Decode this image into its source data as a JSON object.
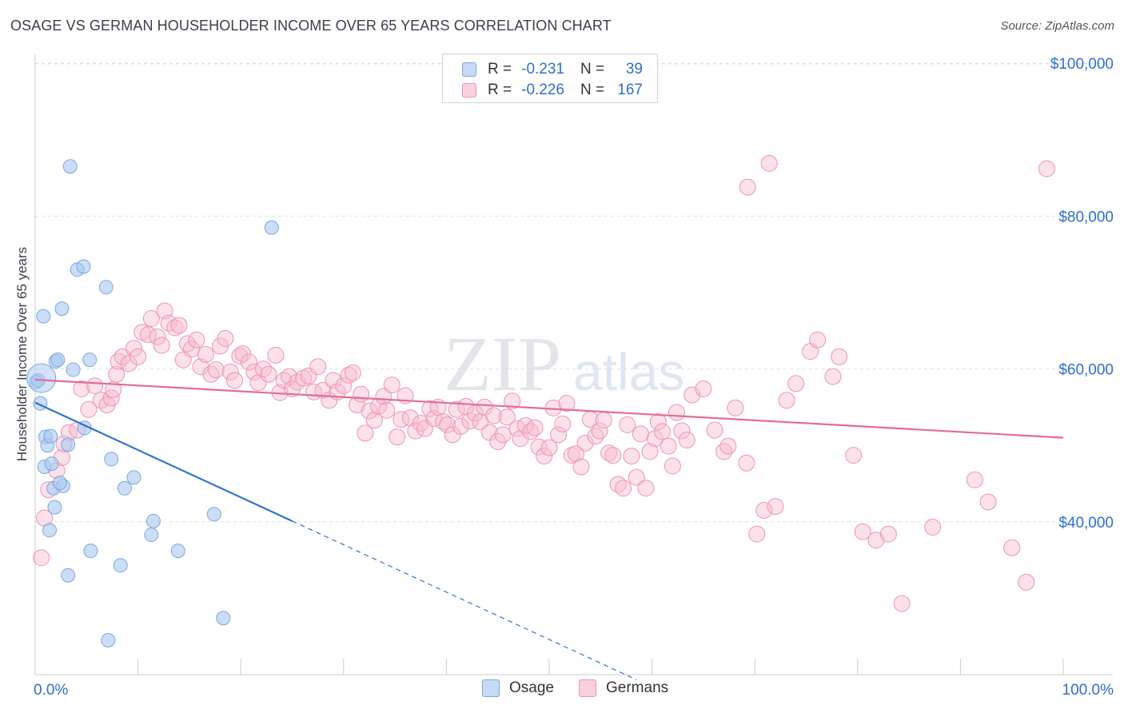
{
  "header": {
    "title": "OSAGE VS GERMAN HOUSEHOLDER INCOME OVER 65 YEARS CORRELATION CHART",
    "source": "Source: ZipAtlas.com"
  },
  "watermark": {
    "zip": "ZIP",
    "atlas": "atlas"
  },
  "legend_top": {
    "r_label": "R =",
    "n_label": "N =",
    "rows": [
      {
        "r_value": "-0.231",
        "n_value": "39"
      },
      {
        "r_value": "-0.226",
        "n_value": "167"
      }
    ]
  },
  "colors": {
    "osage_fill": "#a9c8f0",
    "osage_stroke": "#7aa8e0",
    "osage_line": "#2f73d0",
    "german_fill": "#f6bdd0",
    "german_stroke": "#ee93b2",
    "german_line": "#e46b98",
    "axis_text": "#2f6fd0",
    "grid": "#dde0e4"
  },
  "chart_data": {
    "type": "scatter",
    "title": "OSAGE VS GERMAN HOUSEHOLDER INCOME OVER 65 YEARS CORRELATION CHART",
    "xlabel": "",
    "ylabel": "Householder Income Over 65 years",
    "xlim": [
      0,
      100
    ],
    "ylim": [
      20000,
      100000
    ],
    "x_tick_labels": [
      "0.0%",
      "100.0%"
    ],
    "y_ticks": [
      40000,
      60000,
      80000,
      100000
    ],
    "y_tick_labels": [
      "$40,000",
      "$60,000",
      "$80,000",
      "$100,000"
    ],
    "grid": true,
    "legend_placement": "bottom-center",
    "series": [
      {
        "name": "Osage",
        "r": -0.231,
        "n": 39,
        "trend": {
          "x0": 0,
          "y0": 55600,
          "x1": 25,
          "y1": 40100,
          "dash_to_x": 58.5
        },
        "points": [
          [
            0.1,
            58300
          ],
          [
            0.3,
            58500
          ],
          [
            0.5,
            55500
          ],
          [
            0.8,
            66900
          ],
          [
            1.0,
            51100
          ],
          [
            1.2,
            50000
          ],
          [
            0.9,
            47200
          ],
          [
            1.5,
            51200
          ],
          [
            1.6,
            47600
          ],
          [
            1.8,
            44400
          ],
          [
            2.0,
            61000
          ],
          [
            2.2,
            61200
          ],
          [
            2.6,
            67900
          ],
          [
            1.9,
            41900
          ],
          [
            2.7,
            44700
          ],
          [
            3.2,
            50100
          ],
          [
            3.4,
            86500
          ],
          [
            3.7,
            59900
          ],
          [
            4.1,
            73000
          ],
          [
            4.7,
            73400
          ],
          [
            4.8,
            52300
          ],
          [
            5.3,
            61200
          ],
          [
            5.4,
            36200
          ],
          [
            6.9,
            70700
          ],
          [
            7.1,
            24500
          ],
          [
            7.4,
            48200
          ],
          [
            8.3,
            34300
          ],
          [
            8.7,
            44400
          ],
          [
            9.6,
            45800
          ],
          [
            11.3,
            38300
          ],
          [
            11.5,
            40100
          ],
          [
            13.9,
            36200
          ],
          [
            17.4,
            41000
          ],
          [
            18.3,
            27400
          ],
          [
            23.0,
            78500
          ],
          [
            3.2,
            33000
          ],
          [
            2.4,
            45100
          ],
          [
            1.4,
            38900
          ],
          [
            0.6,
            58800
          ]
        ]
      },
      {
        "name": "Germans",
        "r": -0.226,
        "n": 167,
        "trend": {
          "x0": 0,
          "y0": 58600,
          "x1": 100,
          "y1": 51000
        },
        "points": [
          [
            0.6,
            35300
          ],
          [
            0.9,
            40500
          ],
          [
            1.3,
            44200
          ],
          [
            2.1,
            46700
          ],
          [
            2.6,
            48400
          ],
          [
            2.8,
            50200
          ],
          [
            3.3,
            51700
          ],
          [
            4.1,
            52000
          ],
          [
            4.5,
            57400
          ],
          [
            5.2,
            54700
          ],
          [
            5.8,
            57800
          ],
          [
            6.4,
            55900
          ],
          [
            7.0,
            55300
          ],
          [
            7.4,
            56200
          ],
          [
            7.6,
            57300
          ],
          [
            7.9,
            59300
          ],
          [
            8.1,
            61000
          ],
          [
            8.5,
            61600
          ],
          [
            9.1,
            60700
          ],
          [
            9.6,
            62700
          ],
          [
            10.0,
            61600
          ],
          [
            10.4,
            64800
          ],
          [
            11.0,
            64500
          ],
          [
            11.3,
            66600
          ],
          [
            11.9,
            64200
          ],
          [
            12.3,
            63100
          ],
          [
            12.6,
            67600
          ],
          [
            13.0,
            66000
          ],
          [
            13.6,
            65400
          ],
          [
            14.0,
            65700
          ],
          [
            14.4,
            61200
          ],
          [
            14.8,
            63300
          ],
          [
            15.2,
            62600
          ],
          [
            15.7,
            63800
          ],
          [
            16.1,
            60300
          ],
          [
            16.6,
            61900
          ],
          [
            17.1,
            59300
          ],
          [
            17.6,
            59900
          ],
          [
            18.0,
            63000
          ],
          [
            18.5,
            64000
          ],
          [
            19.0,
            59600
          ],
          [
            19.4,
            58500
          ],
          [
            19.9,
            61700
          ],
          [
            20.2,
            62000
          ],
          [
            20.8,
            60900
          ],
          [
            21.3,
            59600
          ],
          [
            21.7,
            58200
          ],
          [
            22.2,
            60000
          ],
          [
            22.7,
            59300
          ],
          [
            23.4,
            61800
          ],
          [
            23.8,
            56900
          ],
          [
            24.2,
            58500
          ],
          [
            24.7,
            59000
          ],
          [
            25.0,
            57400
          ],
          [
            25.5,
            58300
          ],
          [
            26.1,
            58800
          ],
          [
            26.6,
            59100
          ],
          [
            27.1,
            57000
          ],
          [
            27.5,
            60300
          ],
          [
            28.0,
            57200
          ],
          [
            28.6,
            55900
          ],
          [
            29.0,
            58500
          ],
          [
            29.4,
            57000
          ],
          [
            30.0,
            57800
          ],
          [
            30.5,
            59200
          ],
          [
            30.9,
            59500
          ],
          [
            31.3,
            55300
          ],
          [
            31.7,
            56700
          ],
          [
            32.1,
            51600
          ],
          [
            32.5,
            54500
          ],
          [
            33.0,
            53300
          ],
          [
            33.4,
            55100
          ],
          [
            33.9,
            56400
          ],
          [
            34.2,
            54600
          ],
          [
            34.7,
            57900
          ],
          [
            35.2,
            51100
          ],
          [
            35.6,
            53400
          ],
          [
            36.0,
            56500
          ],
          [
            36.5,
            53600
          ],
          [
            37.0,
            51900
          ],
          [
            37.5,
            52900
          ],
          [
            37.9,
            52200
          ],
          [
            38.4,
            54800
          ],
          [
            38.8,
            53500
          ],
          [
            39.2,
            55000
          ],
          [
            39.7,
            53100
          ],
          [
            40.1,
            52700
          ],
          [
            40.6,
            51400
          ],
          [
            41.0,
            54700
          ],
          [
            41.4,
            52500
          ],
          [
            41.9,
            55100
          ],
          [
            42.3,
            53200
          ],
          [
            42.8,
            54200
          ],
          [
            43.3,
            53100
          ],
          [
            43.7,
            55000
          ],
          [
            44.2,
            51700
          ],
          [
            44.6,
            53900
          ],
          [
            45.0,
            50500
          ],
          [
            45.5,
            51400
          ],
          [
            45.9,
            53700
          ],
          [
            46.4,
            55800
          ],
          [
            46.9,
            52200
          ],
          [
            47.2,
            50900
          ],
          [
            47.7,
            52600
          ],
          [
            48.2,
            51800
          ],
          [
            48.6,
            52300
          ],
          [
            49.0,
            49800
          ],
          [
            49.5,
            48600
          ],
          [
            50.0,
            49700
          ],
          [
            50.4,
            54900
          ],
          [
            50.9,
            51400
          ],
          [
            51.3,
            52800
          ],
          [
            51.7,
            55500
          ],
          [
            52.2,
            48700
          ],
          [
            52.6,
            48900
          ],
          [
            53.1,
            47200
          ],
          [
            53.5,
            50300
          ],
          [
            54.0,
            53400
          ],
          [
            54.5,
            51200
          ],
          [
            54.9,
            51900
          ],
          [
            55.3,
            53300
          ],
          [
            55.8,
            49000
          ],
          [
            56.2,
            48700
          ],
          [
            56.7,
            44900
          ],
          [
            57.2,
            44400
          ],
          [
            57.6,
            52700
          ],
          [
            58.0,
            48600
          ],
          [
            58.5,
            45800
          ],
          [
            58.9,
            51500
          ],
          [
            59.4,
            44400
          ],
          [
            59.8,
            49200
          ],
          [
            60.3,
            50900
          ],
          [
            60.6,
            53100
          ],
          [
            61.0,
            51800
          ],
          [
            61.6,
            49900
          ],
          [
            62.0,
            47300
          ],
          [
            62.4,
            54300
          ],
          [
            62.9,
            51900
          ],
          [
            63.4,
            50700
          ],
          [
            63.9,
            56600
          ],
          [
            65.0,
            57400
          ],
          [
            66.1,
            52000
          ],
          [
            67.0,
            49200
          ],
          [
            67.4,
            49900
          ],
          [
            68.1,
            54900
          ],
          [
            69.2,
            47700
          ],
          [
            70.2,
            38400
          ],
          [
            70.9,
            41500
          ],
          [
            72.0,
            42000
          ],
          [
            73.1,
            55900
          ],
          [
            74.0,
            58100
          ],
          [
            75.4,
            62300
          ],
          [
            76.1,
            63800
          ],
          [
            77.6,
            59000
          ],
          [
            78.2,
            61600
          ],
          [
            79.6,
            48700
          ],
          [
            80.5,
            38700
          ],
          [
            81.8,
            37600
          ],
          [
            83.0,
            38400
          ],
          [
            84.3,
            29300
          ],
          [
            87.3,
            39300
          ],
          [
            91.4,
            45500
          ],
          [
            92.7,
            42600
          ],
          [
            95.0,
            36600
          ],
          [
            96.4,
            32100
          ],
          [
            98.4,
            86200
          ],
          [
            71.4,
            86900
          ],
          [
            69.3,
            83800
          ]
        ]
      }
    ]
  },
  "bottom_legend": {
    "items": [
      {
        "label": "Osage"
      },
      {
        "label": "Germans"
      }
    ]
  }
}
